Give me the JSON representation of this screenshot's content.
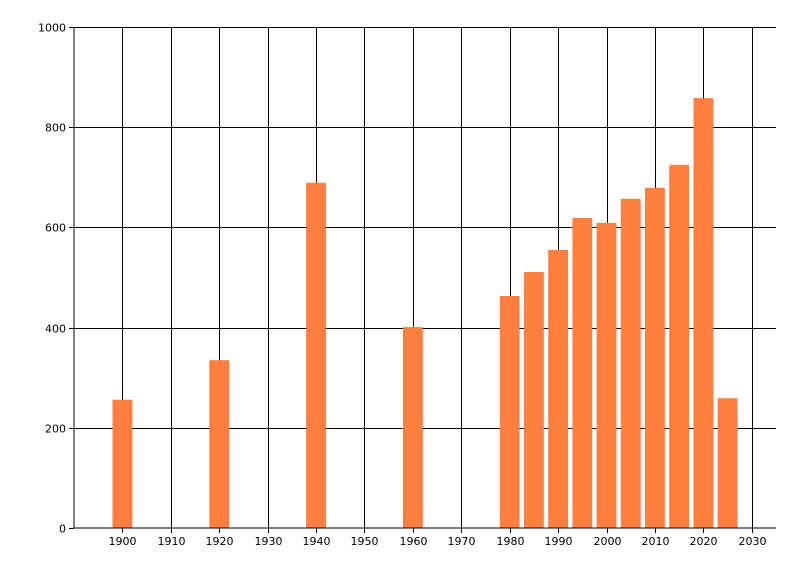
{
  "chart_data": {
    "type": "bar",
    "x": [
      1900,
      1920,
      1940,
      1960,
      1980,
      1985,
      1990,
      1995,
      2000,
      2005,
      2010,
      2015,
      2020,
      2025
    ],
    "values": [
      256,
      335,
      689,
      401,
      463,
      511,
      555,
      619,
      609,
      657,
      679,
      725,
      858,
      259
    ],
    "xlim": [
      1890,
      2035
    ],
    "ylim": [
      0,
      1000
    ],
    "xticks": [
      1900,
      1910,
      1920,
      1930,
      1940,
      1950,
      1960,
      1970,
      1980,
      1990,
      2000,
      2010,
      2020,
      2030
    ],
    "yticks": [
      0,
      200,
      400,
      600,
      800,
      1000
    ],
    "grid": true,
    "bar_color": "#FF7F40",
    "grid_color": "#000000"
  }
}
